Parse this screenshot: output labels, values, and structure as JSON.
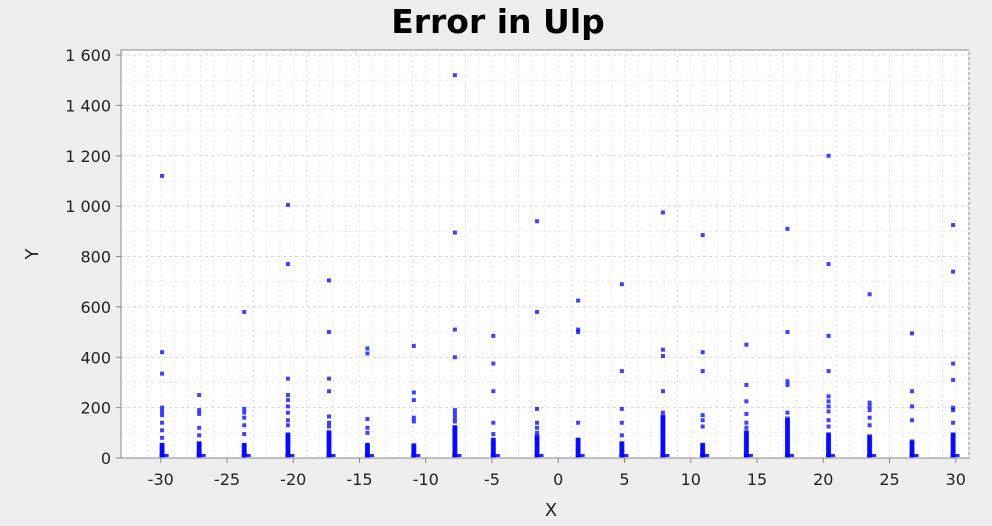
{
  "chart_data": {
    "type": "scatter",
    "title": "Error in Ulp",
    "xlabel": "X",
    "ylabel": "Y",
    "xlim": [
      -33,
      31
    ],
    "ylim": [
      0,
      1620
    ],
    "grid": true,
    "x_ticks": [
      -30,
      -25,
      -20,
      -15,
      -10,
      -5,
      0,
      5,
      10,
      15,
      20,
      25,
      30
    ],
    "x_tick_labels": [
      "-30",
      "-25",
      "-20",
      "-15",
      "-10",
      "-5",
      "0",
      "5",
      "10",
      "15",
      "20",
      "25",
      "30"
    ],
    "y_ticks": [
      0,
      200,
      400,
      600,
      800,
      1000,
      1200,
      1400,
      1600
    ],
    "y_tick_labels": [
      "0",
      "200",
      "400",
      "600",
      "800",
      "1 000",
      "1 200",
      "1 400",
      "1 600"
    ],
    "series": [
      {
        "color": "#0000ff",
        "clusters": [
          {
            "x": -29.9,
            "dense_max": 60,
            "points": [
              1120,
              420,
              335,
              200,
              185,
              170,
              140,
              110,
              80
            ]
          },
          {
            "x": -27.1,
            "dense_max": 65,
            "points": [
              250,
              190,
              175,
              120,
              90
            ]
          },
          {
            "x": -23.7,
            "dense_max": 60,
            "points": [
              580,
              195,
              180,
              160,
              130,
              95
            ]
          },
          {
            "x": -20.4,
            "dense_max": 100,
            "points": [
              1005,
              770,
              315,
              250,
              230,
              205,
              180,
              150,
              130
            ]
          },
          {
            "x": -17.3,
            "dense_max": 110,
            "points": [
              705,
              500,
              315,
              265,
              165,
              140,
              125
            ]
          },
          {
            "x": -14.4,
            "dense_max": 60,
            "points": [
              435,
              415,
              155,
              120,
              100
            ]
          },
          {
            "x": -10.9,
            "dense_max": 55,
            "points": [
              445,
              260,
              230,
              160,
              145
            ]
          },
          {
            "x": -7.8,
            "dense_max": 130,
            "points": [
              1520,
              895,
              510,
              400,
              190,
              175,
              160,
              145
            ]
          },
          {
            "x": -4.9,
            "dense_max": 80,
            "points": [
              485,
              375,
              265,
              140,
              95
            ]
          },
          {
            "x": -1.6,
            "dense_max": 90,
            "points": [
              940,
              580,
              195,
              140,
              120,
              100
            ]
          },
          {
            "x": 1.5,
            "dense_max": 80,
            "points": [
              625,
              510,
              500,
              140
            ]
          },
          {
            "x": 4.8,
            "dense_max": 65,
            "points": [
              690,
              345,
              195,
              140,
              90
            ]
          },
          {
            "x": 7.9,
            "dense_max": 170,
            "points": [
              975,
              430,
              405,
              265,
              180
            ]
          },
          {
            "x": 10.9,
            "dense_max": 60,
            "points": [
              885,
              420,
              345,
              170,
              150,
              125
            ]
          },
          {
            "x": 14.2,
            "dense_max": 110,
            "points": [
              450,
              290,
              225,
              175,
              140,
              120
            ]
          },
          {
            "x": 17.3,
            "dense_max": 160,
            "points": [
              910,
              500,
              305,
              290,
              180
            ]
          },
          {
            "x": 20.4,
            "dense_max": 100,
            "points": [
              1200,
              770,
              485,
              345,
              245,
              225,
              205,
              185,
              150,
              125
            ]
          },
          {
            "x": 23.5,
            "dense_max": 90,
            "points": [
              650,
              220,
              205,
              190,
              160,
              130
            ]
          },
          {
            "x": 26.7,
            "dense_max": 70,
            "points": [
              495,
              265,
              205,
              150
            ]
          },
          {
            "x": 29.8,
            "dense_max": 100,
            "points": [
              925,
              740,
              375,
              310,
              200,
              190,
              140
            ]
          }
        ]
      }
    ]
  }
}
